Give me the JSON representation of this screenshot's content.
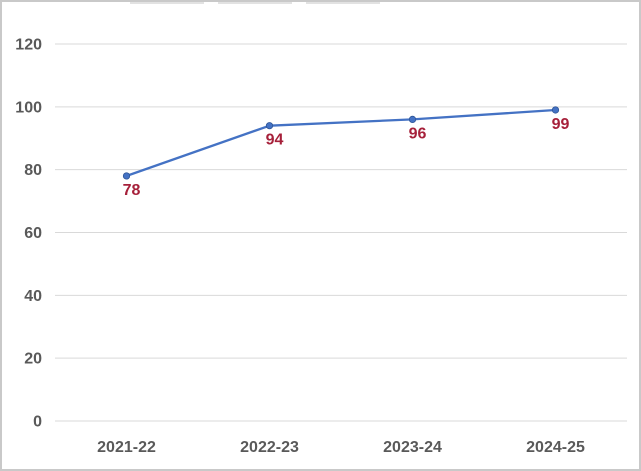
{
  "chart_data": {
    "type": "line",
    "categories": [
      "2021-22",
      "2022-23",
      "2023-24",
      "2024-25"
    ],
    "values": [
      78,
      94,
      96,
      99
    ],
    "y_ticks": [
      0,
      20,
      40,
      60,
      80,
      100,
      120
    ],
    "ylim": [
      0,
      120
    ],
    "grid": true,
    "legend_position": "none",
    "xlabel": "",
    "ylabel": "",
    "line_color": "#4472C4",
    "marker_color": "#4472C4",
    "marker_edge_color": "#2E5596",
    "data_label_color": "#A6203A",
    "tick_label_color": "#595959",
    "gridline_color": "#D9D9D9",
    "frame_border_color": "#C9C9C9",
    "background_color": "#FFFFFF"
  }
}
